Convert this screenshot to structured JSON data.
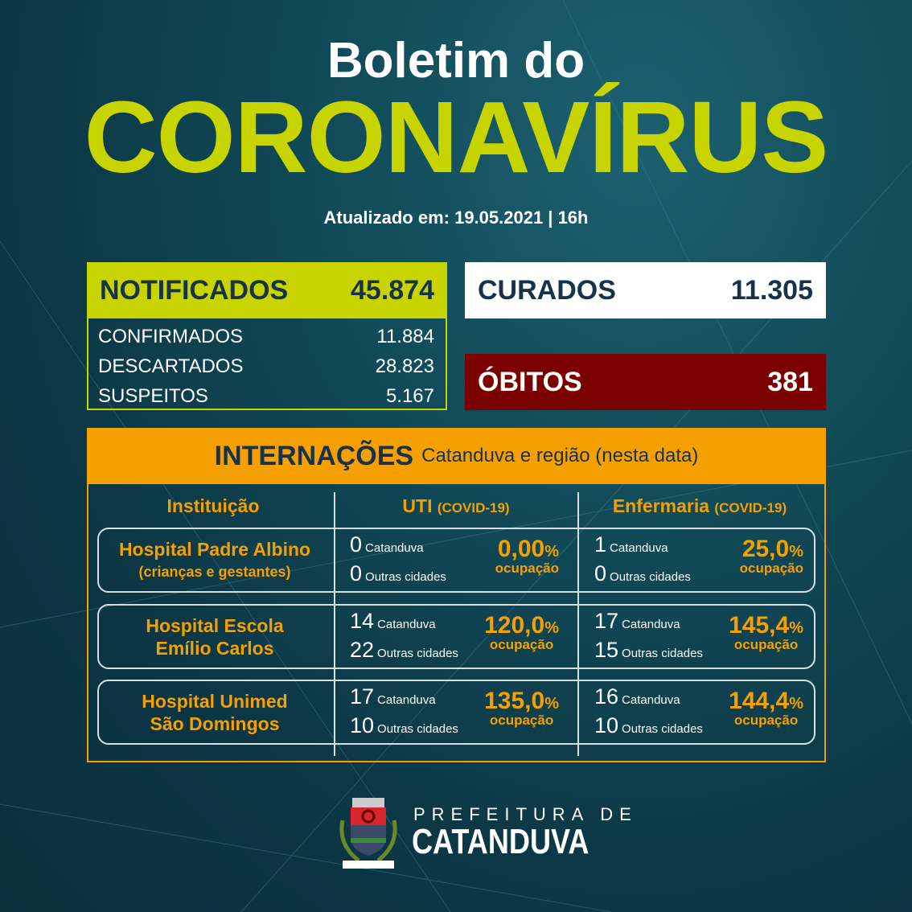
{
  "header": {
    "title_line1": "Boletim do",
    "title_line2": "CORONAVÍRUS",
    "updated": "Atualizado em: 19.05.2021 | 16h"
  },
  "notificados": {
    "label": "NOTIFICADOS",
    "value": "45.874",
    "items": [
      {
        "label": "CONFIRMADOS",
        "value": "11.884"
      },
      {
        "label": "DESCARTADOS",
        "value": "28.823"
      },
      {
        "label": "SUSPEITOS",
        "value": "5.167"
      }
    ]
  },
  "curados": {
    "label": "CURADOS",
    "value": "11.305"
  },
  "obitos": {
    "label": "ÓBITOS",
    "value": "381"
  },
  "internacoes": {
    "title": "INTERNAÇÕES",
    "subtitle": "Catanduva e região (nesta data)",
    "columns": [
      {
        "label": "Instituição",
        "note": ""
      },
      {
        "label": "UTI",
        "note": "(COVID-19)"
      },
      {
        "label": "Enfermaria",
        "note": "(COVID-19)"
      }
    ],
    "local_label": "Catanduva",
    "other_label": "Outras cidades",
    "occupancy_label": "ocupação",
    "pct_sign": "%",
    "rows": [
      {
        "name": "Hospital Padre Albino",
        "name2": "(crianças e gestantes)",
        "uti": {
          "catanduva": "0",
          "outras": "0",
          "ocupacao": "0,00"
        },
        "enf": {
          "catanduva": "1",
          "outras": "0",
          "ocupacao": "25,0"
        }
      },
      {
        "name": "Hospital Escola",
        "name2": "Emílio Carlos",
        "uti": {
          "catanduva": "14",
          "outras": "22",
          "ocupacao": "120,0"
        },
        "enf": {
          "catanduva": "17",
          "outras": "15",
          "ocupacao": "145,4"
        }
      },
      {
        "name": "Hospital Unimed",
        "name2": "São Domingos",
        "uti": {
          "catanduva": "17",
          "outras": "10",
          "ocupacao": "135,0"
        },
        "enf": {
          "catanduva": "16",
          "outras": "10",
          "ocupacao": "144,4"
        }
      }
    ]
  },
  "footer": {
    "line1": "PREFEITURA DE",
    "line2": "CATANDUVA",
    "crest_text": "CATANDUVA"
  },
  "colors": {
    "lime": "#c8d400",
    "orange": "#f5a000",
    "red": "#7a0000",
    "navy": "#17324a",
    "background": "#114a58"
  }
}
